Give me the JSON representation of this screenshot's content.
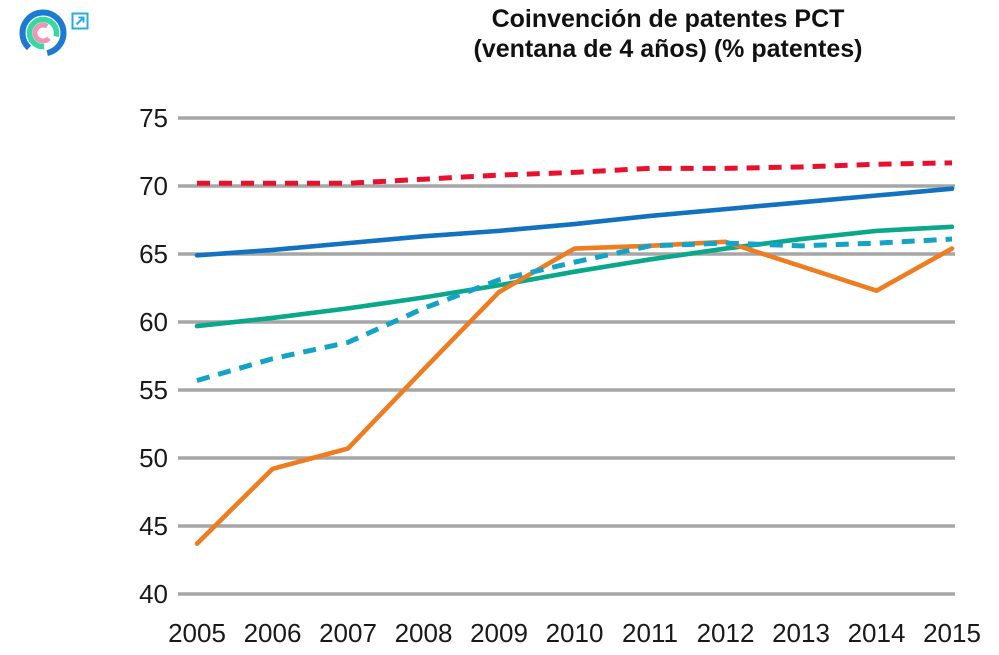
{
  "logo": {
    "name": "concentric-rings-logo",
    "outer_ring_color": "#1d7ad3",
    "middle_ring_color": "#36d9a5",
    "inner_ring_color": "#f195b5",
    "link_icon_color": "#29abe2"
  },
  "title": {
    "line1": "Coinvención de patentes PCT",
    "line2": "(ventana de 4 años) (% patentes)"
  },
  "colors": {
    "gridline": "#a6a6a6",
    "axis_text": "#191919"
  },
  "chart_data": {
    "type": "line",
    "title": "Coinvención de patentes PCT (ventana de 4 años) (% patentes)",
    "xlabel": "",
    "ylabel": "",
    "x": [
      2005,
      2006,
      2007,
      2008,
      2009,
      2010,
      2011,
      2012,
      2013,
      2014,
      2015
    ],
    "x_tick_labels": [
      "2005",
      "2006",
      "2007",
      "2008",
      "2009",
      "2010",
      "2011",
      "2012",
      "2013",
      "2014",
      "2015"
    ],
    "y_ticks": [
      40,
      45,
      50,
      55,
      60,
      65,
      70,
      75
    ],
    "y_tick_labels": [
      "40",
      "45",
      "50",
      "55",
      "60",
      "65",
      "70",
      "75"
    ],
    "ylim": [
      40,
      75
    ],
    "grid": "horizontal-only",
    "legend_visible": false,
    "series": [
      {
        "name": "series-red-dashed",
        "color": "#e8112d",
        "style": "dashed",
        "values": [
          70.2,
          70.2,
          70.2,
          70.5,
          70.8,
          71.0,
          71.3,
          71.3,
          71.4,
          71.6,
          71.7
        ]
      },
      {
        "name": "series-blue-solid",
        "color": "#1272c0",
        "style": "solid",
        "values": [
          64.9,
          65.3,
          65.8,
          66.3,
          66.7,
          67.2,
          67.8,
          68.3,
          68.8,
          69.3,
          69.8
        ]
      },
      {
        "name": "series-teal-solid",
        "color": "#0aa88a",
        "style": "solid",
        "values": [
          59.7,
          60.3,
          61.0,
          61.8,
          62.7,
          63.7,
          64.6,
          65.4,
          66.1,
          66.7,
          67.0
        ]
      },
      {
        "name": "series-orange-solid",
        "color": "#ee7d22",
        "style": "solid",
        "values": [
          43.7,
          49.2,
          50.7,
          56.5,
          62.2,
          65.4,
          65.6,
          65.9,
          64.1,
          62.3,
          65.4
        ]
      },
      {
        "name": "series-cyan-dashed",
        "color": "#14a3c7",
        "style": "dashed",
        "values": [
          55.7,
          57.3,
          58.5,
          61.0,
          63.1,
          64.4,
          65.6,
          65.8,
          65.6,
          65.8,
          66.1
        ]
      }
    ]
  }
}
